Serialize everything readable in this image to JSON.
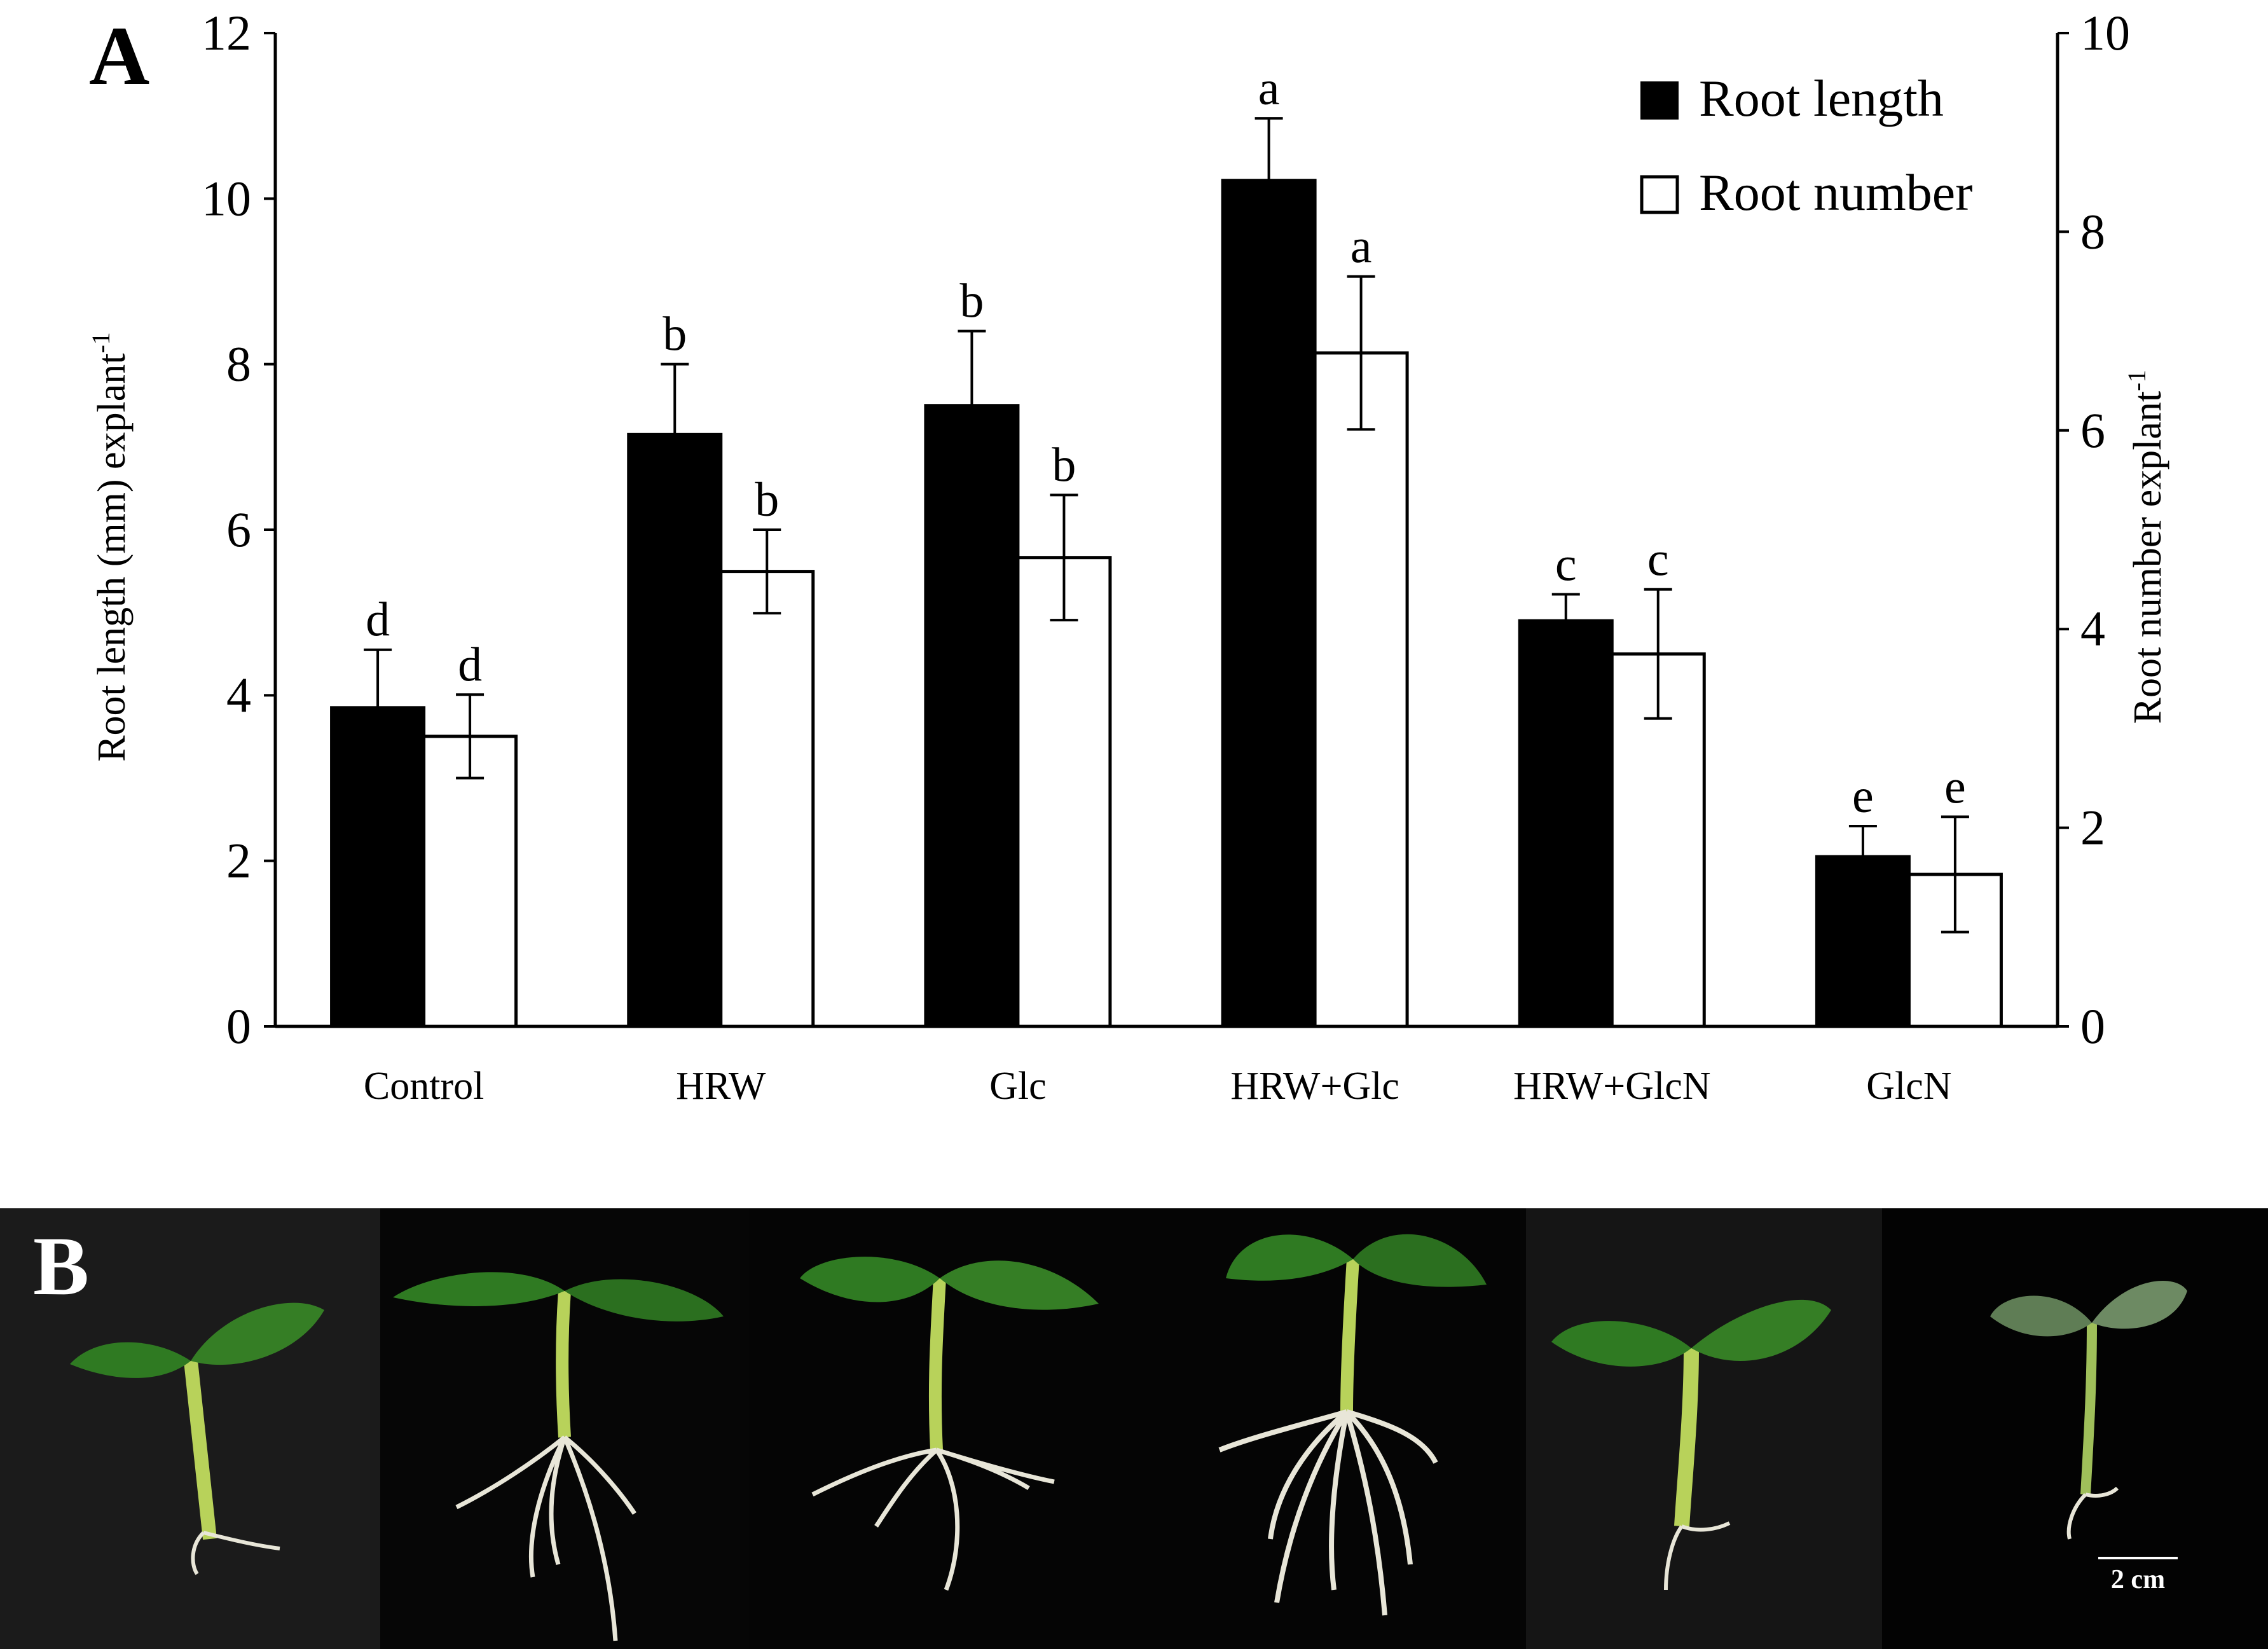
{
  "panel_a": {
    "letter": "A"
  },
  "panel_b": {
    "letter": "B",
    "scale_bar_label": "2 cm"
  },
  "colors": {
    "root_length_bar": "#000000",
    "root_number_bar": "#ffffff",
    "photo_background": "#050505",
    "stem": "#b8d25a",
    "leaf": "#2f7a22",
    "root": "#e8e6d8"
  },
  "chart_data": {
    "type": "bar",
    "categories": [
      "Control",
      "HRW",
      "Glc",
      "HRW+Glc",
      "HRW+GlcN",
      "GlcN"
    ],
    "series": [
      {
        "name": "Root length",
        "axis": "left",
        "values": [
          3.85,
          7.15,
          7.5,
          10.22,
          4.9,
          2.05
        ],
        "errors": [
          0.7,
          0.85,
          0.9,
          0.75,
          0.32,
          0.37
        ],
        "letters": [
          "d",
          "b",
          "b",
          "a",
          "c",
          "e"
        ]
      },
      {
        "name": "Root number",
        "axis": "right",
        "values": [
          2.92,
          4.58,
          4.72,
          6.78,
          3.75,
          1.53
        ],
        "errors": [
          0.42,
          0.42,
          0.63,
          0.77,
          0.65,
          0.58
        ],
        "letters": [
          "d",
          "b",
          "b",
          "a",
          "c",
          "e"
        ]
      }
    ],
    "ylabel": "Root length (mm) explant",
    "ylabel2": "Root number explant",
    "ylabel_superscript": "-1",
    "ylim": [
      0,
      12
    ],
    "yticks": [
      0,
      2,
      4,
      6,
      8,
      10,
      12
    ],
    "ylim2": [
      0,
      10
    ],
    "yticks2": [
      0,
      2,
      4,
      6,
      8,
      10
    ],
    "legend": {
      "position": "top-right",
      "entries": [
        "Root length",
        "Root number"
      ]
    }
  }
}
